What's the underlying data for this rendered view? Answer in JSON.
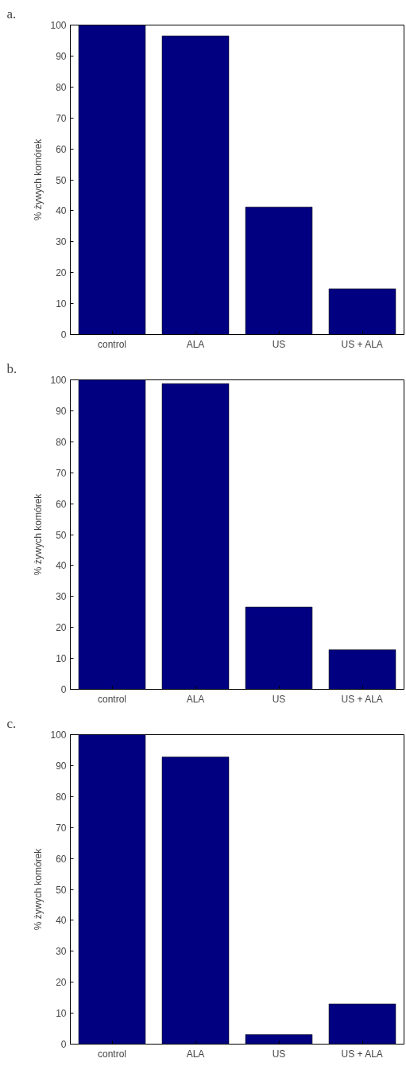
{
  "chart_data": [
    {
      "type": "bar",
      "title": "a.",
      "ylabel": "% żywych komórek",
      "categories": [
        "control",
        "ALA",
        "US",
        "US + ALA"
      ],
      "values": [
        100,
        96.5,
        41.2,
        14.8
      ],
      "color": "#000080",
      "ylim": [
        0,
        100
      ],
      "yticks": [
        0,
        10,
        20,
        30,
        40,
        50,
        60,
        70,
        80,
        90,
        100
      ],
      "grid": false
    },
    {
      "type": "bar",
      "title": "b.",
      "ylabel": "% żywych komórek",
      "categories": [
        "control",
        "ALA",
        "US",
        "US + ALA"
      ],
      "values": [
        100,
        98.8,
        26.6,
        12.8
      ],
      "color": "#000080",
      "ylim": [
        0,
        100
      ],
      "yticks": [
        0,
        10,
        20,
        30,
        40,
        50,
        60,
        70,
        80,
        90,
        100
      ],
      "grid": false
    },
    {
      "type": "bar",
      "title": "c.",
      "ylabel": "% żywych komórek",
      "categories": [
        "control",
        "ALA",
        "US",
        "US + ALA"
      ],
      "values": [
        100,
        92.8,
        3.1,
        13.0
      ],
      "color": "#000080",
      "ylim": [
        0,
        100
      ],
      "yticks": [
        0,
        10,
        20,
        30,
        40,
        50,
        60,
        70,
        80,
        90,
        100
      ],
      "grid": false
    }
  ]
}
